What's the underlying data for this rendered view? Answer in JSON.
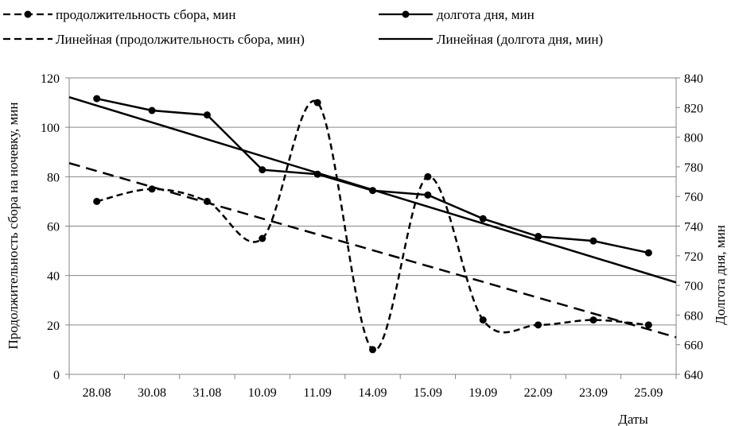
{
  "chart_data": {
    "type": "line",
    "categories": [
      "28.08",
      "30.08",
      "31.08",
      "10.09",
      "11.09",
      "14.09",
      "15.09",
      "19.09",
      "22.09",
      "23.09",
      "25.09"
    ],
    "series": [
      {
        "name": "продолжительность сбора, мин",
        "axis": "left",
        "style": "dashed-smoothed-markers",
        "values": [
          70,
          75,
          70,
          55,
          110,
          10,
          80,
          22,
          20,
          22,
          20
        ]
      },
      {
        "name": "долгота дня, мин",
        "axis": "right",
        "style": "solid-markers",
        "values": [
          826,
          818,
          815,
          778,
          775,
          764,
          761,
          745,
          733,
          730,
          722
        ]
      },
      {
        "name": "Линейная (продолжительность сбора, мин)",
        "axis": "left",
        "style": "dashed-trendline",
        "trend_start": 85.5,
        "trend_end": 15
      },
      {
        "name": "Линейная (долгота дня, мин)",
        "axis": "right",
        "style": "solid-trendline",
        "trend_start": 827,
        "trend_end": 702
      }
    ],
    "xlabel": "Даты",
    "ylabel": "Продолжительность сбора на ночевку, мин",
    "y2label": "Долгота дня, мин",
    "ylim": [
      0,
      120
    ],
    "y2lim": [
      640,
      840
    ],
    "yticks": [
      0,
      20,
      40,
      60,
      80,
      100,
      120
    ],
    "y2ticks": [
      640,
      660,
      680,
      700,
      720,
      740,
      760,
      780,
      800,
      820,
      840
    ],
    "grid": "horizontal",
    "legend_position": "top",
    "colors": {
      "line": "#000000",
      "grid": "#868686",
      "background": "#ffffff"
    }
  }
}
